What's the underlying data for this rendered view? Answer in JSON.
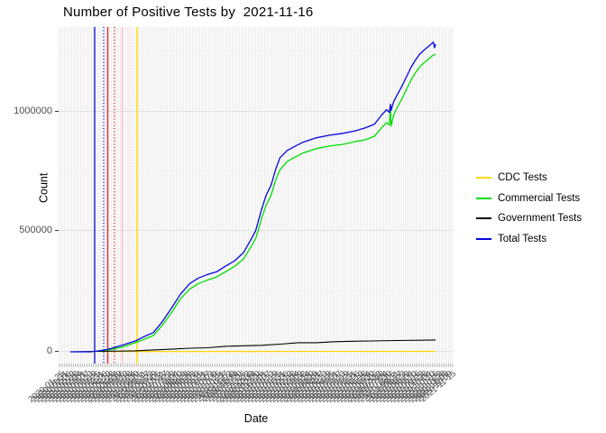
{
  "title": "Number of Positive Tests by  2021-11-16",
  "axes": {
    "y_title": "Count",
    "x_title": "Date",
    "y_ticks": [
      "1000000",
      "500000",
      "0"
    ]
  },
  "legend": {
    "position": "right",
    "items": [
      {
        "label": "CDC Tests",
        "color": "#ffd700"
      },
      {
        "label": "Commercial Tests",
        "color": "#00dd00"
      },
      {
        "label": "Government Tests",
        "color": "#000000"
      },
      {
        "label": "Total Tests",
        "color": "#0505dd"
      }
    ]
  },
  "chart_data": {
    "type": "line",
    "title": "Number of Positive Tests by  2021-11-16",
    "xlabel": "Date",
    "ylabel": "Count",
    "x_domain": [
      "2020-01-22",
      "2021-11-16"
    ],
    "ylim": [
      0,
      1360000
    ],
    "y_ticks": [
      0,
      500000,
      1000000
    ],
    "grid": true,
    "legend_position": "right",
    "series": [
      {
        "name": "CDC Tests",
        "color": "#ffd700",
        "width": 1.2,
        "values": [
          [
            "2020-02-27",
            1200
          ],
          [
            "2020-12-02",
            1500
          ],
          [
            "2021-11-16",
            1800
          ]
        ]
      },
      {
        "name": "Government Tests",
        "color": "#000000",
        "width": 1.1,
        "values": [
          [
            "2020-01-22",
            0
          ],
          [
            "2020-05-19",
            4000
          ],
          [
            "2020-06-21",
            8000
          ],
          [
            "2020-07-24",
            11000
          ],
          [
            "2020-08-26",
            15000
          ],
          [
            "2020-09-28",
            17000
          ],
          [
            "2020-10-30",
            23000
          ],
          [
            "2020-12-02",
            25000
          ],
          [
            "2021-01-04",
            27000
          ],
          [
            "2021-02-06",
            32000
          ],
          [
            "2021-03-11",
            38000
          ],
          [
            "2021-04-13",
            38000
          ],
          [
            "2021-05-16",
            42000
          ],
          [
            "2021-06-18",
            44000
          ],
          [
            "2021-07-21",
            45000
          ],
          [
            "2021-09-07",
            47000
          ],
          [
            "2021-11-16",
            49000
          ]
        ]
      },
      {
        "name": "Commercial Tests",
        "color": "#00dd00",
        "width": 1.3,
        "values": [
          [
            "2020-02-27",
            0
          ],
          [
            "2020-03-15",
            4000
          ],
          [
            "2020-03-31",
            8000
          ],
          [
            "2020-04-25",
            19000
          ],
          [
            "2020-05-19",
            38000
          ],
          [
            "2020-06-05",
            53000
          ],
          [
            "2020-06-21",
            68000
          ],
          [
            "2020-07-07",
            110000
          ],
          [
            "2020-07-24",
            163000
          ],
          [
            "2020-08-09",
            220000
          ],
          [
            "2020-08-26",
            261000
          ],
          [
            "2020-09-11",
            284000
          ],
          [
            "2020-09-28",
            299000
          ],
          [
            "2020-10-14",
            311000
          ],
          [
            "2020-10-30",
            333000
          ],
          [
            "2020-11-16",
            356000
          ],
          [
            "2020-12-02",
            386000
          ],
          [
            "2020-12-14",
            432000
          ],
          [
            "2020-12-24",
            470000
          ],
          [
            "2021-01-04",
            557000
          ],
          [
            "2021-01-12",
            610000
          ],
          [
            "2021-01-21",
            651000
          ],
          [
            "2021-01-29",
            712000
          ],
          [
            "2021-02-06",
            757000
          ],
          [
            "2021-02-19",
            791000
          ],
          [
            "2021-03-03",
            807000
          ],
          [
            "2021-03-19",
            826000
          ],
          [
            "2021-04-13",
            845000
          ],
          [
            "2021-05-07",
            856000
          ],
          [
            "2021-06-01",
            863000
          ],
          [
            "2021-06-25",
            875000
          ],
          [
            "2021-07-12",
            882000
          ],
          [
            "2021-07-28",
            897000
          ],
          [
            "2021-08-10",
            932000
          ],
          [
            "2021-08-19",
            954000
          ],
          [
            "2021-08-24",
            943000
          ],
          [
            "2021-08-26",
            1023000
          ],
          [
            "2021-08-27",
            939000
          ],
          [
            "2021-09-01",
            985000
          ],
          [
            "2021-09-07",
            1015000
          ],
          [
            "2021-09-16",
            1053000
          ],
          [
            "2021-09-24",
            1091000
          ],
          [
            "2021-10-02",
            1129000
          ],
          [
            "2021-10-10",
            1159000
          ],
          [
            "2021-10-18",
            1185000
          ],
          [
            "2021-10-27",
            1204000
          ],
          [
            "2021-11-04",
            1219000
          ],
          [
            "2021-11-10",
            1231000
          ],
          [
            "2021-11-16",
            1238000
          ]
        ]
      },
      {
        "name": "Total Tests",
        "color": "#0505dd",
        "width": 1.3,
        "values": [
          [
            "2020-01-22",
            0
          ],
          [
            "2020-02-27",
            0
          ],
          [
            "2020-03-15",
            4000
          ],
          [
            "2020-03-31",
            11000
          ],
          [
            "2020-04-25",
            27000
          ],
          [
            "2020-05-19",
            45000
          ],
          [
            "2020-06-05",
            64000
          ],
          [
            "2020-06-21",
            80000
          ],
          [
            "2020-07-07",
            125000
          ],
          [
            "2020-07-24",
            182000
          ],
          [
            "2020-08-09",
            239000
          ],
          [
            "2020-08-26",
            284000
          ],
          [
            "2020-09-11",
            307000
          ],
          [
            "2020-09-28",
            322000
          ],
          [
            "2020-10-14",
            333000
          ],
          [
            "2020-10-30",
            356000
          ],
          [
            "2020-11-16",
            379000
          ],
          [
            "2020-12-02",
            413000
          ],
          [
            "2020-12-14",
            462000
          ],
          [
            "2020-12-24",
            504000
          ],
          [
            "2021-01-04",
            595000
          ],
          [
            "2021-01-12",
            651000
          ],
          [
            "2021-01-21",
            693000
          ],
          [
            "2021-01-29",
            757000
          ],
          [
            "2021-02-06",
            807000
          ],
          [
            "2021-02-19",
            837000
          ],
          [
            "2021-03-03",
            852000
          ],
          [
            "2021-03-19",
            871000
          ],
          [
            "2021-04-13",
            890000
          ],
          [
            "2021-05-07",
            901000
          ],
          [
            "2021-06-01",
            909000
          ],
          [
            "2021-06-25",
            920000
          ],
          [
            "2021-07-12",
            932000
          ],
          [
            "2021-07-28",
            947000
          ],
          [
            "2021-08-10",
            985000
          ],
          [
            "2021-08-19",
            1007000
          ],
          [
            "2021-08-24",
            996000
          ],
          [
            "2021-08-26",
            1030000
          ],
          [
            "2021-08-27",
            1004000
          ],
          [
            "2021-09-01",
            1041000
          ],
          [
            "2021-09-07",
            1068000
          ],
          [
            "2021-09-16",
            1106000
          ],
          [
            "2021-09-24",
            1144000
          ],
          [
            "2021-10-02",
            1182000
          ],
          [
            "2021-10-10",
            1212000
          ],
          [
            "2021-10-18",
            1238000
          ],
          [
            "2021-10-27",
            1257000
          ],
          [
            "2021-11-04",
            1272000
          ],
          [
            "2021-11-10",
            1284000
          ],
          [
            "2021-11-12",
            1288000
          ],
          [
            "2021-11-14",
            1265000
          ],
          [
            "2021-11-16",
            1280000
          ]
        ]
      }
    ],
    "annotations": {
      "vlines": [
        {
          "name": "vline-blue-solid",
          "color": "#1a1ad1",
          "style": "solid",
          "x_frac": 0.0913
        },
        {
          "name": "vline-blue-dotted",
          "color": "#1a1ad1",
          "style": "dotted",
          "x_frac": 0.1142
        },
        {
          "name": "vline-red-solid",
          "color": "#e02424",
          "style": "solid",
          "x_frac": 0.1244
        },
        {
          "name": "vline-red-dotted",
          "color": "#e02424",
          "style": "dotted",
          "x_frac": 0.1416
        },
        {
          "name": "vline-pink-solid",
          "color": "#ffb6c8",
          "style": "solid",
          "x_frac": 0.161
        },
        {
          "name": "vline-pink-dotted",
          "color": "#ffcdd9",
          "style": "dotted",
          "x_frac": 0.1781
        },
        {
          "name": "vline-gold-solid",
          "color": "#ffd700",
          "style": "solid",
          "x_frac": 0.1986
        }
      ]
    }
  },
  "x_axis": {
    "tick_labels": [
      "2020-01-25",
      "2020-01-31",
      "2020-02-06",
      "2020-02-12",
      "2020-02-18",
      "2020-02-24",
      "2020-03-01",
      "2020-03-07",
      "2020-03-13",
      "2020-03-19",
      "2020-03-25",
      "2020-03-31",
      "2020-04-06",
      "2020-04-12",
      "2020-04-18",
      "2020-04-24",
      "2020-04-30",
      "2020-05-06",
      "2020-05-12",
      "2020-05-18",
      "2020-05-24",
      "2020-05-30",
      "2020-06-05",
      "2020-06-11",
      "2020-06-17",
      "2020-06-23",
      "2020-06-29",
      "2020-07-05",
      "2020-07-11",
      "2020-07-17",
      "2020-07-23",
      "2020-07-29",
      "2020-08-04",
      "2020-08-10",
      "2020-08-16",
      "2020-08-22",
      "2020-08-28",
      "2020-09-03",
      "2020-09-09",
      "2020-09-15",
      "2020-09-21",
      "2020-09-27",
      "2020-10-03",
      "2020-10-09",
      "2020-10-15",
      "2020-10-21",
      "2020-10-27",
      "2020-11-02",
      "2020-11-08",
      "2020-11-14",
      "2020-11-20",
      "2020-11-26",
      "2020-12-02",
      "2020-12-08",
      "2020-12-14",
      "2020-12-20",
      "2020-12-26",
      "2021-01-01",
      "2021-01-07",
      "2021-01-13",
      "2021-01-19",
      "2021-01-25",
      "2021-01-31",
      "2021-02-06",
      "2021-02-12",
      "2021-02-18",
      "2021-02-24",
      "2021-03-02",
      "2021-03-08",
      "2021-03-14",
      "2021-03-20",
      "2021-03-26",
      "2021-04-01",
      "2021-04-07",
      "2021-04-13",
      "2021-04-19",
      "2021-04-25",
      "2021-05-01",
      "2021-05-07",
      "2021-05-13",
      "2021-05-19",
      "2021-05-25",
      "2021-05-31",
      "2021-06-06",
      "2021-06-12",
      "2021-06-18",
      "2021-06-24",
      "2021-06-30",
      "2021-07-06",
      "2021-07-12",
      "2021-07-18",
      "2021-07-24",
      "2021-07-30",
      "2021-08-05",
      "2021-08-11",
      "2021-08-17",
      "2021-08-23",
      "2021-08-29",
      "2021-09-04",
      "2021-09-10",
      "2021-09-16",
      "2021-09-22",
      "2021-09-28",
      "2021-10-04",
      "2021-10-10",
      "2021-10-16",
      "2021-10-22",
      "2021-10-28",
      "2021-11-03",
      "2021-11-09",
      "2021-11-15"
    ]
  }
}
